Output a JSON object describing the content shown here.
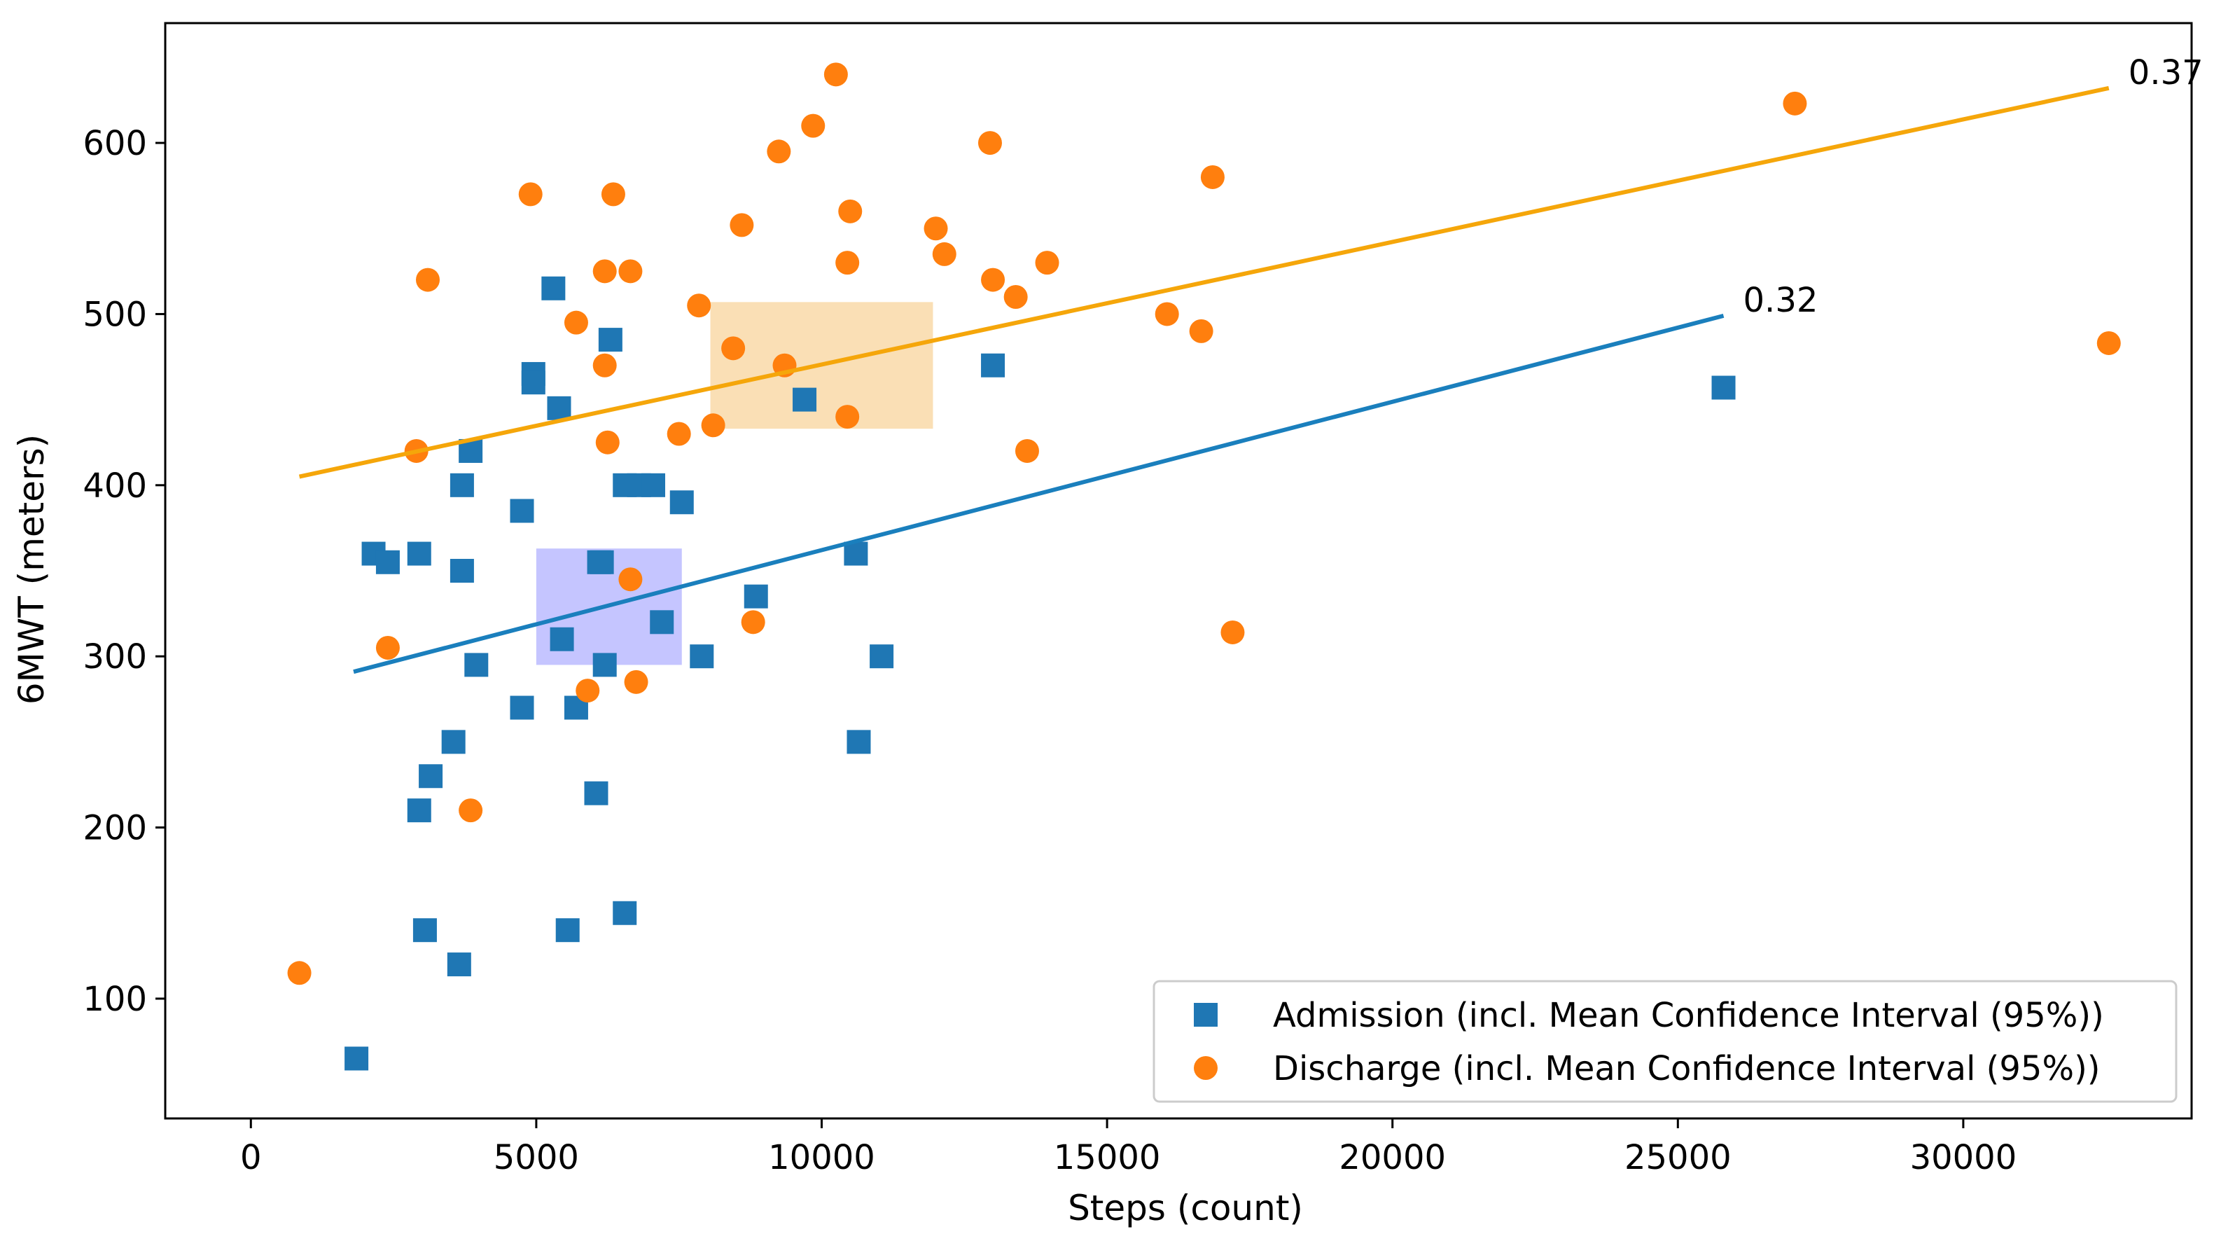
{
  "chart_data": {
    "type": "scatter",
    "title": "",
    "xlabel": "Steps (count)",
    "ylabel": "6MWT (meters)",
    "xlim": [
      -1500,
      34000
    ],
    "ylim": [
      30,
      670
    ],
    "xticks": [
      0,
      5000,
      10000,
      15000,
      20000,
      25000,
      30000
    ],
    "yticks": [
      100,
      200,
      300,
      400,
      500,
      600
    ],
    "legend_position": "lower-right",
    "series": [
      {
        "name": "Admission (incl. Mean Confidence Interval (95%))",
        "marker": "square",
        "color": "#1f77b4",
        "points": [
          [
            1850,
            65
          ],
          [
            2150,
            360
          ],
          [
            2400,
            355
          ],
          [
            2950,
            360
          ],
          [
            2950,
            210
          ],
          [
            3050,
            140
          ],
          [
            3150,
            230
          ],
          [
            3550,
            250
          ],
          [
            3650,
            120
          ],
          [
            3700,
            400
          ],
          [
            3700,
            350
          ],
          [
            3850,
            420
          ],
          [
            3950,
            295
          ],
          [
            4750,
            270
          ],
          [
            4750,
            385
          ],
          [
            4950,
            465
          ],
          [
            4950,
            460
          ],
          [
            5300,
            515
          ],
          [
            5400,
            445
          ],
          [
            5450,
            310
          ],
          [
            5550,
            140
          ],
          [
            5700,
            270
          ],
          [
            6050,
            220
          ],
          [
            6100,
            355
          ],
          [
            6150,
            355
          ],
          [
            6200,
            295
          ],
          [
            6300,
            485
          ],
          [
            6550,
            150
          ],
          [
            6550,
            400
          ],
          [
            6800,
            400
          ],
          [
            7050,
            400
          ],
          [
            7200,
            320
          ],
          [
            7550,
            390
          ],
          [
            7900,
            300
          ],
          [
            8850,
            335
          ],
          [
            9700,
            450
          ],
          [
            10600,
            360
          ],
          [
            10650,
            250
          ],
          [
            11050,
            300
          ],
          [
            13000,
            470
          ],
          [
            25800,
            457
          ]
        ],
        "fit": {
          "x": [
            1800,
            25800
          ],
          "y": [
            291,
            499
          ],
          "r_label": "0.32"
        },
        "ci_box": {
          "x": [
            5000,
            7550
          ],
          "y": [
            295,
            363
          ],
          "color": "#6666ff"
        }
      },
      {
        "name": "Discharge (incl. Mean Confidence Interval (95%))",
        "marker": "circle",
        "color": "#ff7f0e",
        "points": [
          [
            850,
            115
          ],
          [
            2400,
            305
          ],
          [
            2900,
            420
          ],
          [
            3100,
            520
          ],
          [
            3850,
            210
          ],
          [
            4900,
            570
          ],
          [
            5700,
            495
          ],
          [
            5900,
            280
          ],
          [
            6200,
            525
          ],
          [
            6200,
            470
          ],
          [
            6250,
            425
          ],
          [
            6350,
            570
          ],
          [
            6650,
            525
          ],
          [
            6650,
            345
          ],
          [
            6750,
            285
          ],
          [
            7500,
            430
          ],
          [
            7850,
            505
          ],
          [
            8100,
            435
          ],
          [
            8450,
            480
          ],
          [
            8600,
            552
          ],
          [
            8800,
            320
          ],
          [
            9250,
            595
          ],
          [
            9350,
            470
          ],
          [
            9850,
            610
          ],
          [
            10250,
            640
          ],
          [
            10450,
            530
          ],
          [
            10450,
            440
          ],
          [
            10500,
            560
          ],
          [
            12000,
            550
          ],
          [
            12150,
            535
          ],
          [
            12950,
            600
          ],
          [
            13000,
            520
          ],
          [
            13400,
            510
          ],
          [
            13600,
            420
          ],
          [
            13950,
            530
          ],
          [
            16050,
            500
          ],
          [
            16650,
            490
          ],
          [
            16850,
            580
          ],
          [
            17200,
            314
          ],
          [
            27050,
            623
          ],
          [
            32550,
            483
          ]
        ],
        "fit": {
          "x": [
            850,
            32550
          ],
          "y": [
            405,
            632
          ],
          "r_label": "0.37"
        },
        "ci_box": {
          "x": [
            8050,
            11950
          ],
          "y": [
            433,
            507
          ],
          "color": "#f5b85a"
        }
      }
    ]
  }
}
